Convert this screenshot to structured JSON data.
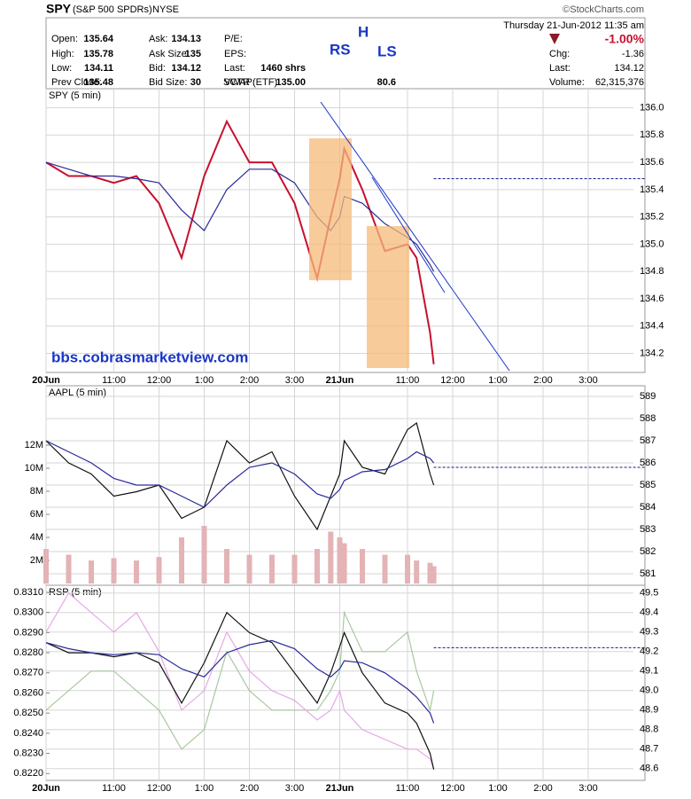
{
  "header": {
    "symbol": "SPY",
    "name": "(S&P 500 SPDRs)",
    "exchange": "NYSE",
    "date": "Thursday  21-Jun-2012  11:35 am",
    "source": "©StockCharts.com",
    "quote": [
      [
        [
          "Open:",
          "135.64"
        ],
        [
          "High:",
          "135.78"
        ],
        [
          "Low:",
          "134.11"
        ],
        [
          "Prev Close:",
          "135.48"
        ]
      ],
      [
        [
          "Ask:",
          "134.13"
        ],
        [
          "Ask Size:",
          "135"
        ],
        [
          "Bid:",
          "134.12"
        ],
        [
          "Bid Size:",
          "30"
        ]
      ],
      [
        [
          "P/E:"
        ],
        [
          "EPS:"
        ],
        [
          "Last:",
          "1460 shrs"
        ],
        [
          "VWAP:",
          "135.00"
        ]
      ]
    ],
    "sctr": [
      "SCTR (ETF):",
      "80.6"
    ],
    "change_pct": "-1.00%",
    "summary": [
      [
        "Chg:",
        "-1.36"
      ],
      [
        "Last:",
        "134.12"
      ],
      [
        "Volume:",
        "62,315,376"
      ]
    ]
  },
  "chart_data": [
    {
      "type": "line",
      "title": "SPY (5 min)",
      "annotations": [
        "bbs.cobrasmarketview.com",
        "RS",
        "H",
        "LS"
      ],
      "x": [
        0,
        0.5,
        1,
        1.5,
        2,
        2.5,
        3,
        3.5,
        4,
        4.5,
        5,
        5.5,
        6,
        6.3,
        6.5,
        6.6,
        7,
        7.5,
        8,
        8.2,
        8.5,
        8.58
      ],
      "xlim": [
        0,
        13
      ],
      "x_labels": true,
      "xticks": [
        {
          "value": 0,
          "label": "20Jun"
        },
        {
          "value": 1.5,
          "label": "11:00"
        },
        {
          "value": 2.5,
          "label": "12:00"
        },
        {
          "value": 3.5,
          "label": "1:00"
        },
        {
          "value": 4.5,
          "label": "2:00"
        },
        {
          "value": 5.5,
          "label": "3:00"
        },
        {
          "value": 6.5,
          "label": "21Jun"
        },
        {
          "value": 8,
          "label": "11:00"
        },
        {
          "value": 9,
          "label": "12:00"
        },
        {
          "value": 10,
          "label": "1:00"
        },
        {
          "value": 11,
          "label": "2:00"
        },
        {
          "value": 12,
          "label": "3:00"
        }
      ],
      "ylim": [
        134.06,
        136.14
      ],
      "yticks": [
        {
          "value": 134.2,
          "label": "134.2"
        },
        {
          "value": 134.4,
          "label": "134.4"
        },
        {
          "value": 134.6,
          "label": "134.6"
        },
        {
          "value": 134.8,
          "label": "134.8"
        },
        {
          "value": 135,
          "label": "135.0"
        },
        {
          "value": 135.2,
          "label": "135.2"
        },
        {
          "value": 135.4,
          "label": "135.4"
        },
        {
          "value": 135.6,
          "label": "135.6"
        },
        {
          "value": 135.8,
          "label": "135.8"
        },
        {
          "value": 136,
          "label": "136.0"
        }
      ],
      "ref": 135.48,
      "series": [
        {
          "color": "#c8102e",
          "values": [
            135.6,
            135.5,
            135.5,
            135.45,
            135.5,
            135.3,
            134.9,
            135.5,
            135.9,
            135.6,
            135.6,
            135.3,
            134.75,
            135.2,
            135.48,
            135.7,
            135.4,
            134.95,
            135.0,
            134.9,
            134.35,
            134.12
          ]
        },
        {
          "color": "#2a2a9a",
          "values": [
            135.6,
            135.55,
            135.5,
            135.5,
            135.48,
            135.45,
            135.25,
            135.1,
            135.4,
            135.55,
            135.55,
            135.45,
            135.2,
            135.1,
            135.2,
            135.35,
            135.3,
            135.15,
            135.05,
            135.0,
            134.85,
            134.8
          ]
        }
      ]
    },
    {
      "type": "line",
      "title": "AAPL (5 min)",
      "x": [
        0,
        0.5,
        1,
        1.5,
        2,
        2.5,
        3,
        3.5,
        4,
        4.5,
        5,
        5.5,
        6,
        6.3,
        6.5,
        6.6,
        7,
        7.5,
        8,
        8.2,
        8.5,
        8.58
      ],
      "xlim": [
        0,
        13
      ],
      "x_labels": false,
      "xticks": [
        0,
        1.5,
        2.5,
        3.5,
        4.5,
        5.5,
        6.5,
        8,
        9,
        10,
        11,
        12
      ],
      "ylim": [
        580.48,
        589.48
      ],
      "yticks": [
        581,
        582,
        583,
        584,
        585,
        586,
        587,
        588,
        589
      ],
      "y2lim": [
        -0.15,
        17.15
      ],
      "y2ticks": [
        {
          "value": 2,
          "label": "2M"
        },
        {
          "value": 4,
          "label": "4M"
        },
        {
          "value": 6,
          "label": "6M"
        },
        {
          "value": 8,
          "label": "8M"
        },
        {
          "value": 10,
          "label": "10M"
        },
        {
          "value": 12,
          "label": "12M"
        }
      ],
      "ref": 585.8,
      "series": [
        {
          "kind": "bar",
          "axis": "y2",
          "color": "#e3b3b6",
          "values": [
            3,
            2.5,
            2,
            2.2,
            2,
            2.3,
            4,
            5,
            3,
            2.5,
            2.5,
            2.5,
            3,
            4.5,
            4,
            3.5,
            3,
            2.5,
            2.5,
            2,
            1.8,
            1.5
          ]
        },
        {
          "color": "#111111",
          "values": [
            587,
            586,
            585.5,
            584.5,
            584.7,
            585,
            583.5,
            584,
            587,
            586,
            586.5,
            584.5,
            583,
            584.5,
            585.5,
            587,
            585.8,
            585.5,
            587.5,
            587.8,
            585.5,
            585
          ]
        },
        {
          "color": "#2a2a9a",
          "values": [
            587,
            586.5,
            586,
            585.3,
            585,
            585,
            584.5,
            584,
            585,
            585.8,
            586,
            585.5,
            584.6,
            584.4,
            584.8,
            585.2,
            585.6,
            585.7,
            586.2,
            586.5,
            586.2,
            586
          ]
        }
      ]
    },
    {
      "type": "line",
      "title": "RSP (5 min)",
      "x": [
        0,
        0.5,
        1,
        1.5,
        2,
        2.5,
        3,
        3.5,
        4,
        4.5,
        5,
        5.5,
        6,
        6.3,
        6.5,
        6.6,
        7,
        7.5,
        8,
        8.2,
        8.5,
        8.58
      ],
      "xlim": [
        0,
        13
      ],
      "x_labels": true,
      "xticks": [
        {
          "value": 0,
          "label": "20Jun"
        },
        {
          "value": 1.5,
          "label": "11:00"
        },
        {
          "value": 2.5,
          "label": "12:00"
        },
        {
          "value": 3.5,
          "label": "1:00"
        },
        {
          "value": 4.5,
          "label": "2:00"
        },
        {
          "value": 5.5,
          "label": "3:00"
        },
        {
          "value": 6.5,
          "label": "21Jun"
        },
        {
          "value": 8,
          "label": "11:00"
        },
        {
          "value": 9,
          "label": "12:00"
        },
        {
          "value": 10,
          "label": "1:00"
        },
        {
          "value": 11,
          "label": "2:00"
        },
        {
          "value": 12,
          "label": "3:00"
        }
      ],
      "ylim": [
        48.54,
        49.54
      ],
      "yticks": [
        {
          "value": 48.6,
          "label": "48.6"
        },
        {
          "value": 48.7,
          "label": "48.7"
        },
        {
          "value": 48.8,
          "label": "48.8"
        },
        {
          "value": 48.9,
          "label": "48.9"
        },
        {
          "value": 49,
          "label": "49.0"
        },
        {
          "value": 49.1,
          "label": "49.1"
        },
        {
          "value": 49.2,
          "label": "49.2"
        },
        {
          "value": 49.3,
          "label": "49.3"
        },
        {
          "value": 49.4,
          "label": "49.4"
        },
        {
          "value": 49.5,
          "label": "49.5"
        }
      ],
      "y2lim": [
        0.82166,
        0.83135
      ],
      "y2ticks": [
        {
          "value": 0.822,
          "label": "0.8220"
        },
        {
          "value": 0.823,
          "label": "0.8230"
        },
        {
          "value": 0.824,
          "label": "0.8240"
        },
        {
          "value": 0.825,
          "label": "0.8250"
        },
        {
          "value": 0.826,
          "label": "0.8260"
        },
        {
          "value": 0.827,
          "label": "0.8270"
        },
        {
          "value": 0.828,
          "label": "0.8280"
        },
        {
          "value": 0.829,
          "label": "0.8290"
        },
        {
          "value": 0.83,
          "label": "0.8300"
        },
        {
          "value": 0.831,
          "label": "0.8310"
        }
      ],
      "ref": 49.22,
      "series": [
        {
          "color": "#a8c8a0",
          "values": [
            48.9,
            49.0,
            49.1,
            49.1,
            49.0,
            48.9,
            48.7,
            48.8,
            49.2,
            49.0,
            48.9,
            48.9,
            48.9,
            49.0,
            49.1,
            49.4,
            49.2,
            49.2,
            49.3,
            49.1,
            48.9,
            49.0
          ]
        },
        {
          "color": "#e6a8e6",
          "values": [
            49.3,
            49.5,
            49.4,
            49.3,
            49.4,
            49.2,
            48.9,
            49.0,
            49.3,
            49.1,
            49.0,
            48.95,
            48.85,
            48.9,
            49.0,
            48.9,
            48.8,
            48.75,
            48.7,
            48.7,
            48.65,
            48.6
          ]
        },
        {
          "axis": "y2",
          "color": "#111111",
          "values": [
            0.8285,
            0.828,
            0.828,
            0.8278,
            0.828,
            0.8275,
            0.8255,
            0.8275,
            0.83,
            0.829,
            0.8285,
            0.827,
            0.8255,
            0.827,
            0.8283,
            0.829,
            0.827,
            0.8255,
            0.825,
            0.8245,
            0.823,
            0.8222
          ]
        },
        {
          "axis": "y2",
          "color": "#2a2a9a",
          "values": [
            0.8285,
            0.8282,
            0.828,
            0.8279,
            0.828,
            0.8279,
            0.8272,
            0.8268,
            0.828,
            0.8284,
            0.8286,
            0.8282,
            0.8272,
            0.8268,
            0.8272,
            0.8276,
            0.8275,
            0.827,
            0.8262,
            0.8258,
            0.825,
            0.8245
          ]
        }
      ]
    }
  ]
}
